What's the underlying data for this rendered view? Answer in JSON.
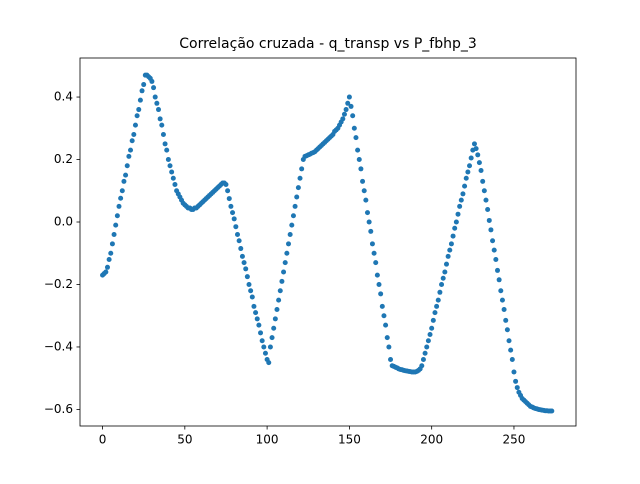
{
  "chart_data": {
    "type": "scatter",
    "title": "Correlação cruzada - q_transp vs P_fbhp_3",
    "color": "#1f77b4",
    "x": [
      0,
      1,
      2,
      3,
      4,
      5,
      6,
      7,
      8,
      9,
      10,
      11,
      12,
      13,
      14,
      15,
      16,
      17,
      18,
      19,
      20,
      21,
      22,
      23,
      24,
      25,
      26,
      27,
      28,
      29,
      30,
      31,
      32,
      33,
      34,
      35,
      36,
      37,
      38,
      39,
      40,
      41,
      42,
      43,
      44,
      45,
      46,
      47,
      48,
      49,
      50,
      51,
      52,
      53,
      54,
      55,
      56,
      57,
      58,
      59,
      60,
      61,
      62,
      63,
      64,
      65,
      66,
      67,
      68,
      69,
      70,
      71,
      72,
      73,
      74,
      75,
      76,
      77,
      78,
      79,
      80,
      81,
      82,
      83,
      84,
      85,
      86,
      87,
      88,
      89,
      90,
      91,
      92,
      93,
      94,
      95,
      96,
      97,
      98,
      99,
      100,
      101,
      102,
      103,
      104,
      105,
      106,
      107,
      108,
      109,
      110,
      111,
      112,
      113,
      114,
      115,
      116,
      117,
      118,
      119,
      120,
      121,
      122,
      123,
      124,
      125,
      126,
      127,
      128,
      129,
      130,
      131,
      132,
      133,
      134,
      135,
      136,
      137,
      138,
      139,
      140,
      141,
      142,
      143,
      144,
      145,
      146,
      147,
      148,
      149,
      150,
      151,
      152,
      153,
      154,
      155,
      156,
      157,
      158,
      159,
      160,
      161,
      162,
      163,
      164,
      165,
      166,
      167,
      168,
      169,
      170,
      171,
      172,
      173,
      174,
      175,
      176,
      177,
      178,
      179,
      180,
      181,
      182,
      183,
      184,
      185,
      186,
      187,
      188,
      189,
      190,
      191,
      192,
      193,
      194,
      195,
      196,
      197,
      198,
      199,
      200,
      201,
      202,
      203,
      204,
      205,
      206,
      207,
      208,
      209,
      210,
      211,
      212,
      213,
      214,
      215,
      216,
      217,
      218,
      219,
      220,
      221,
      222,
      223,
      224,
      225,
      226,
      227,
      228,
      229,
      230,
      231,
      232,
      233,
      234,
      235,
      236,
      237,
      238,
      239,
      240,
      241,
      242,
      243,
      244,
      245,
      246,
      247,
      248,
      249,
      250,
      251,
      252,
      253,
      254,
      255,
      256,
      257,
      258,
      259,
      260,
      261,
      262,
      263,
      264,
      265,
      266,
      267,
      268,
      269,
      270,
      271,
      272,
      273
    ],
    "values": [
      -0.17,
      -0.165,
      -0.16,
      -0.145,
      -0.12,
      -0.1,
      -0.07,
      -0.04,
      -0.01,
      0.02,
      0.05,
      0.076,
      0.1,
      0.13,
      0.15,
      0.18,
      0.21,
      0.23,
      0.26,
      0.28,
      0.31,
      0.34,
      0.36,
      0.39,
      0.42,
      0.44,
      0.47,
      0.47,
      0.465,
      0.46,
      0.45,
      0.43,
      0.4,
      0.38,
      0.36,
      0.33,
      0.31,
      0.28,
      0.25,
      0.23,
      0.2,
      0.18,
      0.16,
      0.14,
      0.12,
      0.1,
      0.09,
      0.08,
      0.07,
      0.06,
      0.055,
      0.05,
      0.045,
      0.045,
      0.04,
      0.04,
      0.045,
      0.045,
      0.05,
      0.055,
      0.06,
      0.065,
      0.07,
      0.075,
      0.08,
      0.085,
      0.09,
      0.095,
      0.1,
      0.105,
      0.11,
      0.115,
      0.12,
      0.125,
      0.125,
      0.12,
      0.1,
      0.075,
      0.05,
      0.03,
      0.01,
      -0.015,
      -0.04,
      -0.06,
      -0.085,
      -0.11,
      -0.13,
      -0.15,
      -0.175,
      -0.2,
      -0.22,
      -0.24,
      -0.27,
      -0.29,
      -0.31,
      -0.33,
      -0.355,
      -0.38,
      -0.4,
      -0.42,
      -0.44,
      -0.45,
      -0.4,
      -0.37,
      -0.34,
      -0.31,
      -0.28,
      -0.25,
      -0.22,
      -0.19,
      -0.16,
      -0.13,
      -0.1,
      -0.07,
      -0.04,
      -0.01,
      0.02,
      0.05,
      0.08,
      0.11,
      0.14,
      0.17,
      0.2,
      0.21,
      0.212,
      0.215,
      0.217,
      0.22,
      0.222,
      0.225,
      0.23,
      0.235,
      0.24,
      0.245,
      0.25,
      0.255,
      0.26,
      0.265,
      0.27,
      0.275,
      0.28,
      0.29,
      0.295,
      0.3,
      0.31,
      0.32,
      0.33,
      0.345,
      0.36,
      0.38,
      0.4,
      0.37,
      0.34,
      0.3,
      0.27,
      0.23,
      0.2,
      0.17,
      0.13,
      0.1,
      0.07,
      0.03,
      0,
      -0.03,
      -0.07,
      -0.1,
      -0.13,
      -0.17,
      -0.2,
      -0.23,
      -0.27,
      -0.3,
      -0.33,
      -0.37,
      -0.4,
      -0.44,
      -0.46,
      -0.462,
      -0.465,
      -0.467,
      -0.47,
      -0.472,
      -0.473,
      -0.475,
      -0.476,
      -0.477,
      -0.478,
      -0.479,
      -0.48,
      -0.48,
      -0.48,
      -0.478,
      -0.475,
      -0.47,
      -0.46,
      -0.44,
      -0.42,
      -0.4,
      -0.38,
      -0.36,
      -0.34,
      -0.315,
      -0.29,
      -0.27,
      -0.25,
      -0.225,
      -0.2,
      -0.18,
      -0.16,
      -0.135,
      -0.11,
      -0.09,
      -0.07,
      -0.045,
      -0.02,
      0,
      0.025,
      0.05,
      0.07,
      0.09,
      0.115,
      0.14,
      0.16,
      0.18,
      0.205,
      0.23,
      0.25,
      0.235,
      0.215,
      0.19,
      0.165,
      0.13,
      0.1,
      0.07,
      0.04,
      0.005,
      -0.025,
      -0.06,
      -0.09,
      -0.12,
      -0.155,
      -0.185,
      -0.22,
      -0.25,
      -0.28,
      -0.315,
      -0.345,
      -0.38,
      -0.41,
      -0.44,
      -0.48,
      -0.51,
      -0.53,
      -0.545,
      -0.555,
      -0.565,
      -0.57,
      -0.575,
      -0.58,
      -0.585,
      -0.59,
      -0.592,
      -0.595,
      -0.597,
      -0.598,
      -0.6,
      -0.601,
      -0.602,
      -0.603,
      -0.604,
      -0.604,
      -0.605,
      -0.605,
      -0.605
    ],
    "xlim": [
      -13.7,
      287.7
    ],
    "ylim": [
      -0.653,
      0.525
    ],
    "xticks": [
      0,
      50,
      100,
      150,
      200,
      250
    ],
    "yticks": [
      {
        "value": -0.6,
        "label": "−0.6"
      },
      {
        "value": -0.4,
        "label": "−0.4"
      },
      {
        "value": -0.2,
        "label": "−0.2"
      },
      {
        "value": 0,
        "label": "0.0"
      },
      0.2,
      0.4
    ]
  }
}
